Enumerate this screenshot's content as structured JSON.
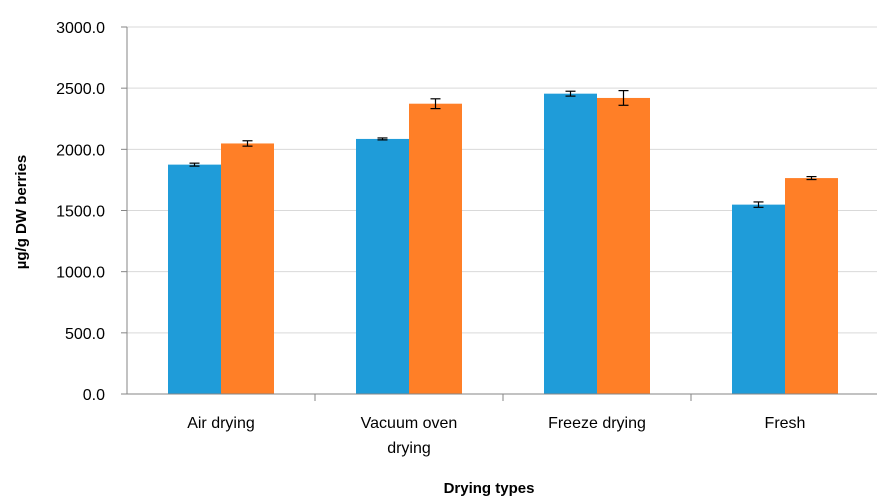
{
  "chart_data": {
    "type": "bar",
    "title": "",
    "xlabel": "Drying types",
    "ylabel": "µg/g DW berries",
    "ylim": [
      0,
      3000
    ],
    "yticks": [
      "0.0",
      "500.0",
      "1000.0",
      "1500.0",
      "2000.0",
      "2500.0",
      "3000.0"
    ],
    "grid": true,
    "legend": "none",
    "categories": [
      [
        "Air drying"
      ],
      [
        "Vacuum oven",
        "drying"
      ],
      [
        "Freeze drying"
      ],
      [
        "Fresh"
      ]
    ],
    "series": [
      {
        "color": "#1F9CD9",
        "values": [
          1875,
          2085,
          2455,
          1548
        ],
        "errors": [
          12,
          8,
          20,
          22
        ]
      },
      {
        "color": "#FF7F27",
        "values": [
          2048,
          2373,
          2420,
          1765
        ],
        "errors": [
          22,
          40,
          60,
          12
        ]
      }
    ],
    "colors": {
      "grid": "#D9D9D9",
      "axis": "#868686",
      "error_bar": "#000000"
    }
  }
}
